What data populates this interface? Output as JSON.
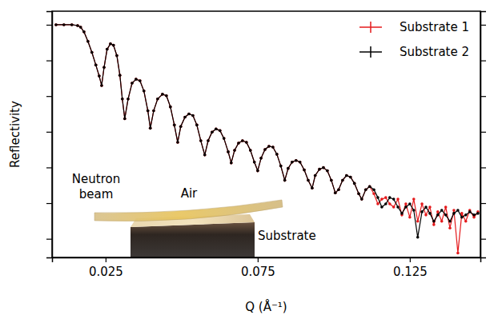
{
  "chart_data": {
    "type": "line",
    "x_label": "Q (Å⁻¹)",
    "y_label": "Reflectivity",
    "log": "y",
    "grid": false,
    "legend": "upper right",
    "tick_labels": "x",
    "marker": "circle",
    "xlim": [
      0.0074,
      0.1482
    ],
    "xticks": [
      0.025,
      0.075,
      0.125
    ],
    "ylim": [
      3e-07,
      2.4
    ],
    "yticks": [
      1e-06,
      1e-05,
      0.0001,
      0.001,
      0.01,
      0.1,
      1
    ],
    "annotations": [
      "Neutron beam",
      "Air",
      "Substrate"
    ],
    "x": [
      0.0087,
      0.0113,
      0.0139,
      0.0158,
      0.0168,
      0.0179,
      0.0192,
      0.0205,
      0.0218,
      0.0229,
      0.0237,
      0.0245,
      0.0255,
      0.0266,
      0.0276,
      0.0287,
      0.0297,
      0.0305,
      0.0313,
      0.0324,
      0.0337,
      0.035,
      0.0363,
      0.0376,
      0.0389,
      0.0397,
      0.0408,
      0.0421,
      0.0437,
      0.045,
      0.0463,
      0.0476,
      0.0487,
      0.0497,
      0.0511,
      0.0524,
      0.0537,
      0.055,
      0.0563,
      0.0576,
      0.0587,
      0.06,
      0.0613,
      0.0626,
      0.0639,
      0.0653,
      0.0663,
      0.0674,
      0.0687,
      0.07,
      0.0713,
      0.0726,
      0.0739,
      0.075,
      0.0761,
      0.0774,
      0.0787,
      0.08,
      0.0813,
      0.0826,
      0.0839,
      0.085,
      0.0863,
      0.0876,
      0.0889,
      0.0903,
      0.0916,
      0.0929,
      0.0939,
      0.0953,
      0.0966,
      0.0979,
      0.0992,
      0.1005,
      0.1016,
      0.1029,
      0.1042,
      0.1055,
      0.1068,
      0.1082,
      0.1092,
      0.1105,
      0.1118,
      0.1132,
      0.1145,
      0.1158,
      0.1171,
      0.1184,
      0.1197,
      0.1211,
      0.1224,
      0.1237,
      0.125,
      0.1263,
      0.1276,
      0.129,
      0.1303,
      0.1316,
      0.1329,
      0.1342,
      0.1355,
      0.1368,
      0.1382,
      0.1395,
      0.1408,
      0.1421,
      0.1434,
      0.1447,
      0.1461,
      0.1474
    ],
    "series": [
      {
        "name": "Substrate 1",
        "color": "#e41a1c",
        "values": [
          1.0,
          1.0,
          1.0,
          0.95,
          0.858,
          0.632,
          0.343,
          0.168,
          0.0744,
          0.0365,
          0.0198,
          0.0638,
          0.206,
          0.294,
          0.266,
          0.137,
          0.0384,
          0.00832,
          0.00233,
          0.00832,
          0.0231,
          0.0297,
          0.0269,
          0.0139,
          0.00388,
          0.00126,
          0.00388,
          0.00832,
          0.0113,
          0.0102,
          0.005,
          0.00155,
          0.000506,
          0.0014,
          0.00258,
          0.00316,
          0.00286,
          0.00155,
          0.00056,
          0.000224,
          0.00056,
          0.00098,
          0.0012,
          0.00108,
          0.000652,
          0.000274,
          0.000134,
          0.000303,
          0.00048,
          0.00056,
          0.000506,
          0.000303,
          0.000141,
          8.07e-05,
          0.000182,
          0.000319,
          0.000392,
          0.000372,
          0.000235,
          0.00011,
          4.38e-05,
          9.4e-05,
          0.000141,
          0.000157,
          0.000141,
          8.5e-05,
          4.38e-05,
          2.63e-05,
          5.94e-05,
          8.93e-05,
          9.9e-05,
          8.07e-05,
          4.38e-05,
          1.94e-05,
          2.38e-05,
          4.38e-05,
          5.94e-05,
          5.37e-05,
          3.57e-05,
          1.84e-05,
          1.29e-05,
          2.38e-05,
          2.92e-05,
          1.84e-05,
          9.5e-06,
          1.29e-05,
          1.43e-05,
          9.5e-06,
          7.75e-06,
          1.29e-05,
          4.66e-06,
          9.5e-06,
          4e-06,
          1.29e-05,
          3.1e-06,
          9.5e-06,
          4.66e-06,
          7.75e-06,
          2.5e-06,
          5.71e-06,
          3.1e-06,
          7.75e-06,
          2e-06,
          6.32e-06,
          4e-07,
          5.15e-06,
          3.1e-06,
          6.32e-06,
          4e-06,
          5.71e-06
        ]
      },
      {
        "name": "Substrate 2",
        "color": "#000000",
        "values": [
          1.0,
          1.0,
          1.0,
          0.95,
          0.858,
          0.632,
          0.343,
          0.168,
          0.0744,
          0.0365,
          0.0198,
          0.0638,
          0.206,
          0.294,
          0.266,
          0.137,
          0.0384,
          0.00832,
          0.00233,
          0.00832,
          0.0231,
          0.0297,
          0.0269,
          0.0139,
          0.00388,
          0.00126,
          0.00388,
          0.00832,
          0.0113,
          0.0102,
          0.005,
          0.00155,
          0.000506,
          0.0014,
          0.00258,
          0.00316,
          0.00286,
          0.00155,
          0.00056,
          0.000224,
          0.00056,
          0.00098,
          0.0012,
          0.00108,
          0.000652,
          0.000274,
          0.000134,
          0.000303,
          0.00048,
          0.00056,
          0.000506,
          0.000303,
          0.000141,
          8.07e-05,
          0.000182,
          0.000319,
          0.000392,
          0.000372,
          0.000235,
          0.00011,
          4.38e-05,
          9.4e-05,
          0.000141,
          0.000157,
          0.000141,
          8.5e-05,
          4.38e-05,
          2.63e-05,
          5.94e-05,
          8.93e-05,
          9.9e-05,
          8.07e-05,
          4.38e-05,
          1.94e-05,
          2.38e-05,
          4.38e-05,
          5.94e-05,
          5.37e-05,
          3.57e-05,
          1.84e-05,
          1.29e-05,
          2.38e-05,
          2.92e-05,
          2.38e-05,
          1.43e-05,
          7.75e-06,
          9.5e-06,
          1.43e-05,
          1.29e-05,
          7.75e-06,
          5.15e-06,
          7.75e-06,
          9.5e-06,
          6.32e-06,
          1.1e-06,
          5.71e-06,
          7.75e-06,
          5.15e-06,
          3.1e-06,
          4.66e-06,
          6.32e-06,
          4.66e-06,
          3.1e-06,
          5.15e-06,
          6.32e-06,
          4e-06,
          4.66e-06,
          5.71e-06,
          4.66e-06,
          5.15e-06
        ]
      }
    ]
  }
}
